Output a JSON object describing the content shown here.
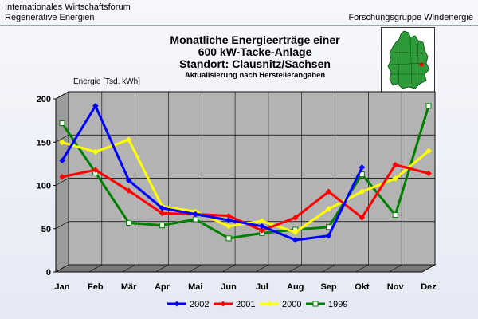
{
  "header": {
    "org_line1": "Internationales Wirtschaftsforum",
    "org_line2": "Regenerative Energien",
    "group": "Forschungsgruppe Windenergie"
  },
  "title": {
    "line1": "Monatliche Energieerträge einer",
    "line2": "600 kW-Tacke-Anlage",
    "line3": "Standort: Clausnitz/Sachsen",
    "line4": "Aktualisierung nach Herstellerangaben"
  },
  "map": {
    "icon": "germany-map-icon",
    "marker_color": "#ff0000"
  },
  "chart_data": {
    "type": "line",
    "ylabel": "Energie [Tsd. kWh]",
    "xlabel": "",
    "ylim": [
      0,
      200
    ],
    "yticks": [
      0,
      50,
      100,
      150,
      200
    ],
    "grid": true,
    "style": "3d-box",
    "legend_position": "bottom",
    "categories": [
      "Jan",
      "Feb",
      "Mär",
      "Apr",
      "Mai",
      "Jun",
      "Jul",
      "Aug",
      "Sep",
      "Okt",
      "Nov",
      "Dez"
    ],
    "series": [
      {
        "name": "2002",
        "color": "#0000ff",
        "marker": "diamond",
        "values": [
          127,
          190,
          104,
          72,
          65,
          58,
          51,
          35,
          40,
          119,
          null,
          null
        ]
      },
      {
        "name": "2001",
        "color": "#ff0000",
        "marker": "diamond",
        "values": [
          108,
          116,
          92,
          66,
          65,
          63,
          46,
          61,
          91,
          61,
          122,
          112
        ]
      },
      {
        "name": "2000",
        "color": "#ffff00",
        "marker": "diamond",
        "values": [
          148,
          137,
          151,
          74,
          68,
          51,
          57,
          44,
          71,
          91,
          106,
          138
        ]
      },
      {
        "name": "1999",
        "color": "#008000",
        "marker": "square",
        "values": [
          170,
          113,
          55,
          52,
          59,
          37,
          43,
          47,
          50,
          111,
          64,
          190
        ]
      }
    ]
  }
}
